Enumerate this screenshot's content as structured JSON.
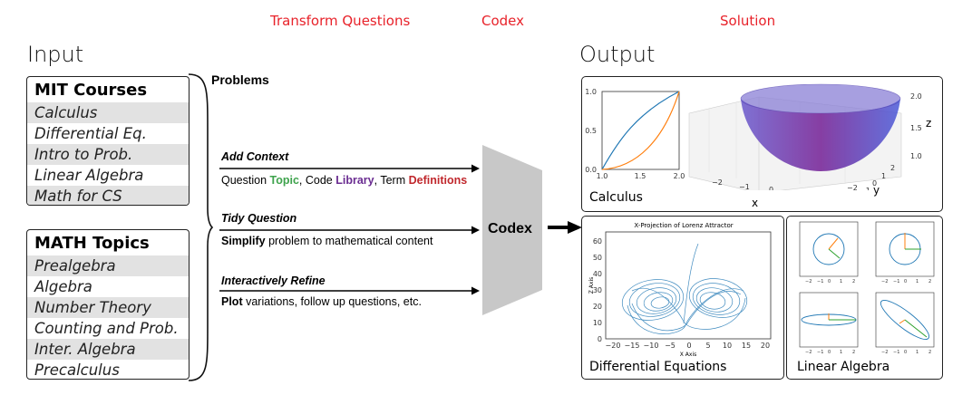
{
  "header": {
    "transform_questions": "Transform Questions",
    "codex": "Codex",
    "solution": "Solution",
    "input": "Input",
    "output": "Output"
  },
  "mit_courses": {
    "title": "MIT Courses",
    "items": [
      "Calculus",
      "Differential Eq.",
      "Intro to Prob.",
      "Linear Algebra",
      "Math for CS"
    ]
  },
  "math_topics": {
    "title": "MATH Topics",
    "items": [
      "Prealgebra",
      "Algebra",
      "Number Theory",
      "Counting and Prob.",
      "Inter. Algebra",
      "Precalculus"
    ]
  },
  "problems_label": "Problems",
  "steps": [
    {
      "title": "Add Context",
      "desc": [
        {
          "text": "Question ",
          "bold": false,
          "color": "#000000"
        },
        {
          "text": "Topic",
          "bold": true,
          "color": "#3fa34d"
        },
        {
          "text": ", Code ",
          "bold": false,
          "color": "#000000"
        },
        {
          "text": "Library",
          "bold": true,
          "color": "#6a2c91"
        },
        {
          "text": ", Term ",
          "bold": false,
          "color": "#000000"
        },
        {
          "text": "Definitions",
          "bold": true,
          "color": "#c0282d"
        }
      ]
    },
    {
      "title": "Tidy Question",
      "desc": [
        {
          "text": "Simplify",
          "bold": true,
          "color": "#000000"
        },
        {
          "text": " problem to mathematical content",
          "bold": false,
          "color": "#000000"
        }
      ]
    },
    {
      "title": "Interactively Refine",
      "desc": [
        {
          "text": "Plot",
          "bold": true,
          "color": "#000000"
        },
        {
          "text": " variations, follow up questions, etc.",
          "bold": false,
          "color": "#000000"
        }
      ]
    }
  ],
  "codex_label": "Codex",
  "calculus_panel": {
    "label": "Calculus",
    "plot2d": {
      "x_ticks": [
        "1.0",
        "1.5",
        "2.0"
      ],
      "y_ticks": [
        "0.0",
        "0.5",
        "1.0"
      ]
    },
    "plot3d": {
      "x_ticks": [
        "−2",
        "−1",
        "0",
        "1",
        "2"
      ],
      "y_ticks": [
        "−2",
        "−1",
        "0",
        "1",
        "2"
      ],
      "z_ticks": [
        "1.0",
        "1.5",
        "2.0"
      ],
      "xlabel": "x",
      "ylabel": "y",
      "zlabel": "z"
    }
  },
  "diffeq_panel": {
    "label": "Differential Equations",
    "title": "X-Projection of Lorenz Attractor",
    "xlabel": "X Axis",
    "ylabel": "Z Axis",
    "x_ticks": [
      "−20",
      "−15",
      "−10",
      "−5",
      "0",
      "5",
      "10",
      "15",
      "20"
    ],
    "y_ticks": [
      "0",
      "10",
      "20",
      "30",
      "40",
      "50",
      "60"
    ]
  },
  "linalg_panel": {
    "label": "Linear Algebra",
    "ticks": [
      "−2",
      "−1",
      "0",
      "1",
      "2"
    ]
  },
  "colors": {
    "red_header": "#e8222a",
    "blue_curve": "#1f77b4",
    "orange_curve": "#ff7f0e",
    "green_vector": "#2ca02c",
    "codex_gray": "#c8c8c8",
    "row_shade": "#e2e2e2"
  }
}
